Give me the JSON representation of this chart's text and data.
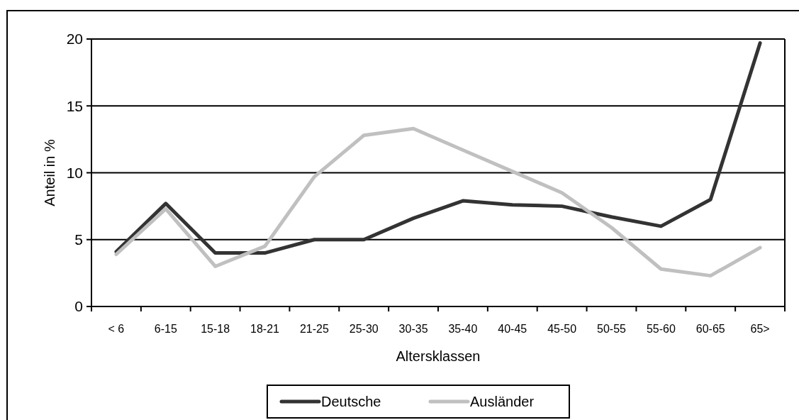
{
  "chart_data": {
    "type": "line",
    "xlabel": "Altersklassen",
    "ylabel": "Anteil in %",
    "categories": [
      "< 6",
      "6-15",
      "15-18",
      "18-21",
      "21-25",
      "25-30",
      "30-35",
      "35-40",
      "40-45",
      "45-50",
      "50-55",
      "55-60",
      "60-65",
      "65>"
    ],
    "series": [
      {
        "name": "Deutsche",
        "color": "#333333",
        "values": [
          4.1,
          7.7,
          4.0,
          4.0,
          5.0,
          5.0,
          6.6,
          7.9,
          7.6,
          7.5,
          6.7,
          6.0,
          8.0,
          19.7
        ]
      },
      {
        "name": "Ausländer",
        "color": "#c0c0c0",
        "values": [
          3.9,
          7.3,
          3.0,
          4.5,
          9.7,
          12.8,
          13.3,
          11.7,
          10.1,
          8.5,
          5.9,
          2.8,
          2.3,
          4.4
        ]
      }
    ],
    "ylim": [
      0,
      20
    ],
    "yticks": [
      0,
      5,
      10,
      15,
      20
    ],
    "grid": "y",
    "legend": "bottom",
    "marker": "none",
    "line_style": "solid"
  }
}
